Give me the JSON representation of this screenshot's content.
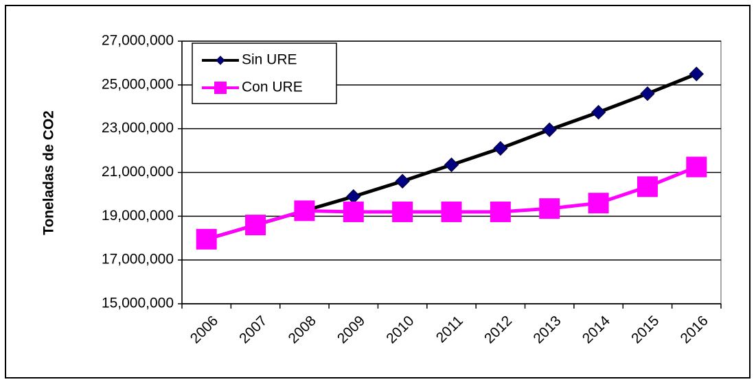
{
  "chart_data": {
    "type": "line",
    "y_label": "Toneladas de CO2",
    "categories": [
      "2006",
      "2007",
      "2008",
      "2009",
      "2010",
      "2011",
      "2012",
      "2013",
      "2014",
      "2015",
      "2016"
    ],
    "series": [
      {
        "name": "Sin URE",
        "color": "#000080",
        "line_color": "#000000",
        "marker": "diamond",
        "values": [
          17950000,
          18600000,
          19250000,
          19900000,
          20600000,
          21350000,
          22100000,
          22950000,
          23750000,
          24600000,
          25500000
        ]
      },
      {
        "name": "Con URE",
        "color": "#ff00ff",
        "line_color": "#ff00ff",
        "marker": "square",
        "values": [
          17950000,
          18600000,
          19250000,
          19200000,
          19200000,
          19200000,
          19200000,
          19350000,
          19600000,
          20350000,
          21250000
        ]
      }
    ],
    "ylim": [
      15000000,
      27000000
    ],
    "yticks": [
      {
        "value": 15000000,
        "label": "15,000,000"
      },
      {
        "value": 17000000,
        "label": "17,000,000"
      },
      {
        "value": 19000000,
        "label": "19,000,000"
      },
      {
        "value": 21000000,
        "label": "21,000,000"
      },
      {
        "value": 23000000,
        "label": "23,000,000"
      },
      {
        "value": 25000000,
        "label": "25,000,000"
      },
      {
        "value": 27000000,
        "label": "27,000,000"
      }
    ],
    "grid": true,
    "legend": "top-left"
  }
}
